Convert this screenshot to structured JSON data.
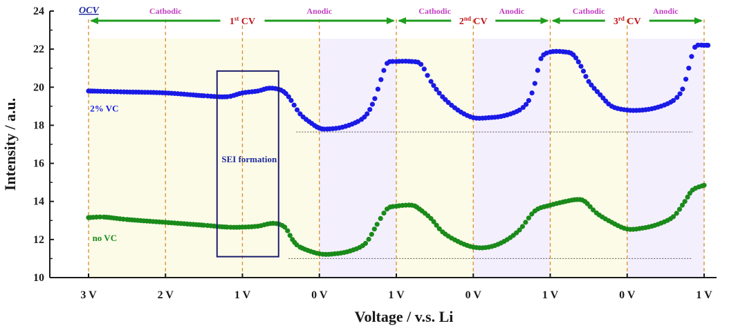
{
  "chart_data": {
    "type": "scatter",
    "xlabel": "Voltage / v.s. Li",
    "ylabel": "Intensity / a.u.",
    "ylim": [
      10,
      24
    ],
    "yticks": [
      10,
      12,
      14,
      16,
      18,
      20,
      22,
      24
    ],
    "xlim": [
      0,
      8
    ],
    "xticks": [
      {
        "x": 0,
        "label": "3 V"
      },
      {
        "x": 1,
        "label": "2 V"
      },
      {
        "x": 2,
        "label": "1 V"
      },
      {
        "x": 3,
        "label": "0 V"
      },
      {
        "x": 4,
        "label": "1 V"
      },
      {
        "x": 5,
        "label": "0 V"
      },
      {
        "x": 6,
        "label": "1 V"
      },
      {
        "x": 7,
        "label": "0 V"
      },
      {
        "x": 8,
        "label": "1 V"
      }
    ],
    "grid": false,
    "series": [
      {
        "name": "2% VC",
        "color": "#1a1ae6",
        "baseline": 17.65,
        "points": [
          [
            0.0,
            19.8
          ],
          [
            0.5,
            19.75
          ],
          [
            1.0,
            19.7
          ],
          [
            1.5,
            19.55
          ],
          [
            1.8,
            19.5
          ],
          [
            2.0,
            19.7
          ],
          [
            2.2,
            19.8
          ],
          [
            2.35,
            19.95
          ],
          [
            2.5,
            19.85
          ],
          [
            2.6,
            19.5
          ],
          [
            2.75,
            18.6
          ],
          [
            2.9,
            18.1
          ],
          [
            3.0,
            17.85
          ],
          [
            3.1,
            17.8
          ],
          [
            3.3,
            17.9
          ],
          [
            3.5,
            18.2
          ],
          [
            3.62,
            18.6
          ],
          [
            3.72,
            19.4
          ],
          [
            3.8,
            20.4
          ],
          [
            3.88,
            21.25
          ],
          [
            4.0,
            21.35
          ],
          [
            4.2,
            21.35
          ],
          [
            4.32,
            21.2
          ],
          [
            4.45,
            20.3
          ],
          [
            4.6,
            19.5
          ],
          [
            4.8,
            18.8
          ],
          [
            5.0,
            18.4
          ],
          [
            5.2,
            18.4
          ],
          [
            5.4,
            18.5
          ],
          [
            5.6,
            18.8
          ],
          [
            5.72,
            19.3
          ],
          [
            5.8,
            20.2
          ],
          [
            5.88,
            21.5
          ],
          [
            6.0,
            21.85
          ],
          [
            6.2,
            21.85
          ],
          [
            6.3,
            21.7
          ],
          [
            6.4,
            21.1
          ],
          [
            6.5,
            20.3
          ],
          [
            6.65,
            19.6
          ],
          [
            6.8,
            19.0
          ],
          [
            7.0,
            18.8
          ],
          [
            7.2,
            18.8
          ],
          [
            7.4,
            18.95
          ],
          [
            7.6,
            19.3
          ],
          [
            7.72,
            19.9
          ],
          [
            7.8,
            21.0
          ],
          [
            7.88,
            22.1
          ],
          [
            8.0,
            22.2
          ],
          [
            8.05,
            22.2
          ]
        ]
      },
      {
        "name": "no VC",
        "color": "#1a8a1a",
        "baseline": 11.0,
        "points": [
          [
            0.0,
            13.15
          ],
          [
            0.2,
            13.18
          ],
          [
            0.5,
            13.05
          ],
          [
            1.0,
            12.9
          ],
          [
            1.5,
            12.75
          ],
          [
            1.8,
            12.65
          ],
          [
            2.0,
            12.65
          ],
          [
            2.2,
            12.7
          ],
          [
            2.4,
            12.85
          ],
          [
            2.55,
            12.65
          ],
          [
            2.65,
            12.0
          ],
          [
            2.75,
            11.6
          ],
          [
            3.0,
            11.25
          ],
          [
            3.2,
            11.25
          ],
          [
            3.4,
            11.4
          ],
          [
            3.6,
            11.8
          ],
          [
            3.75,
            12.8
          ],
          [
            3.88,
            13.6
          ],
          [
            4.0,
            13.75
          ],
          [
            4.2,
            13.8
          ],
          [
            4.3,
            13.6
          ],
          [
            4.45,
            13.1
          ],
          [
            4.6,
            12.4
          ],
          [
            4.8,
            11.9
          ],
          [
            5.0,
            11.6
          ],
          [
            5.2,
            11.6
          ],
          [
            5.4,
            11.9
          ],
          [
            5.6,
            12.5
          ],
          [
            5.8,
            13.5
          ],
          [
            6.0,
            13.8
          ],
          [
            6.2,
            14.0
          ],
          [
            6.35,
            14.1
          ],
          [
            6.45,
            14.0
          ],
          [
            6.6,
            13.4
          ],
          [
            6.8,
            12.9
          ],
          [
            7.0,
            12.55
          ],
          [
            7.2,
            12.6
          ],
          [
            7.4,
            12.8
          ],
          [
            7.6,
            13.2
          ],
          [
            7.75,
            14.0
          ],
          [
            7.85,
            14.6
          ],
          [
            8.0,
            14.85
          ]
        ]
      }
    ],
    "series_labels": [
      {
        "text": "2% VC",
        "x": 0.02,
        "y": 18.9
      },
      {
        "text": "no VC",
        "x": 0.05,
        "y": 12.1
      }
    ],
    "annotations": {
      "ocv": "OCV",
      "sei_box": {
        "text": "SEI formation",
        "x0": 1.67,
        "x1": 2.47,
        "y0": 11.1,
        "y1": 20.85
      },
      "cv_cycles": [
        {
          "text": "1",
          "sup": "st",
          "suffix": " CV",
          "x0": 0,
          "x1": 4,
          "label_x": 2.0
        },
        {
          "text": "2",
          "sup": "nd",
          "suffix": " CV",
          "x0": 4,
          "x1": 6,
          "label_x": 5.0
        },
        {
          "text": "3",
          "sup": "rd",
          "suffix": " CV",
          "x0": 6,
          "x1": 8,
          "label_x": 7.0
        }
      ],
      "phases": [
        {
          "text": "Cathodic",
          "x": 1.0
        },
        {
          "text": "Anodic",
          "x": 3.0
        },
        {
          "text": "Cathodic",
          "x": 4.5
        },
        {
          "text": "Anodic",
          "x": 5.5
        },
        {
          "text": "Cathodic",
          "x": 6.5
        },
        {
          "text": "Anodic",
          "x": 7.5
        }
      ]
    },
    "colors": {
      "cathodic_region": "#fbfbe7",
      "anodic_region": "#f4effd",
      "divider": "#d98c2b",
      "arrow": "#1e9e1e",
      "phase_text": "#c33fc3",
      "cv_text": "#c3161c",
      "box": "#1c1c6e",
      "sei_text": "#1f2a9e",
      "ocv_text": "#1f2a9e"
    }
  }
}
